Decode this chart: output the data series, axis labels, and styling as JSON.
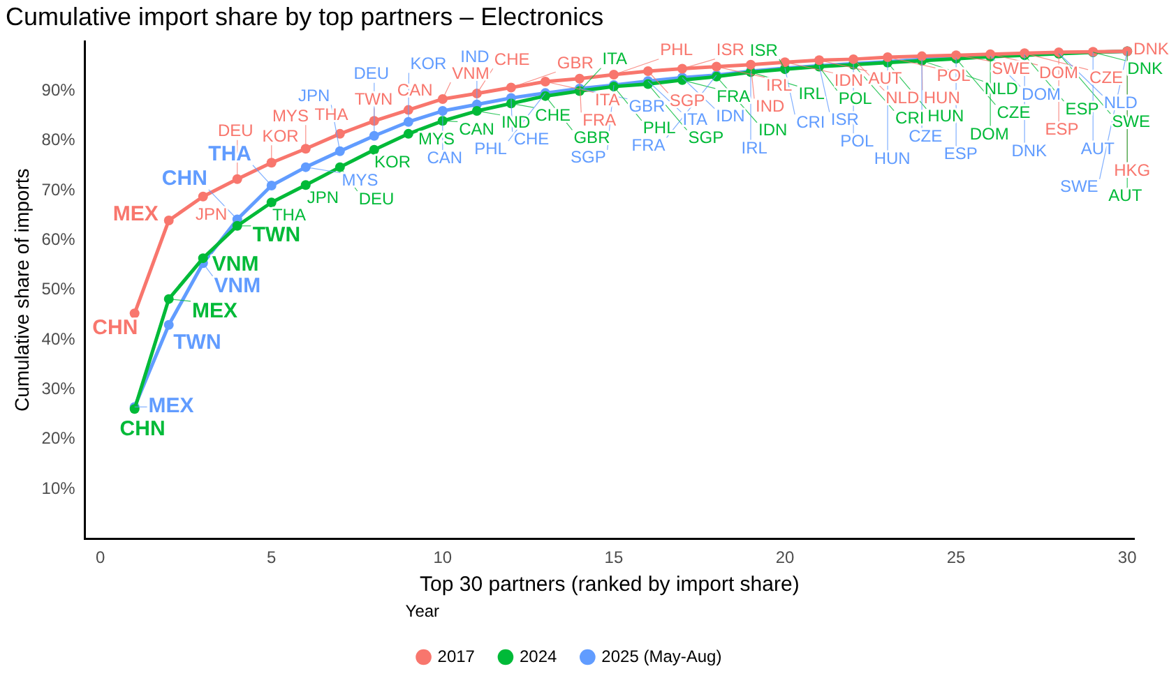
{
  "chart_data": {
    "type": "line",
    "title": "Cumulative import share by top partners – Electronics",
    "xlabel": "Top 30 partners (ranked by import share)",
    "ylabel": "Cumulative share of imports",
    "legend_title": "Year",
    "legend": "bottom",
    "grid": false,
    "marker": "circle",
    "line_style": "solid",
    "x": [
      1,
      2,
      3,
      4,
      5,
      6,
      7,
      8,
      9,
      10,
      11,
      12,
      13,
      14,
      15,
      16,
      17,
      18,
      19,
      20,
      21,
      22,
      23,
      24,
      25,
      26,
      27,
      28,
      29,
      30
    ],
    "xlim": [
      -0.45,
      30.2
    ],
    "xticks": [
      0,
      5,
      10,
      15,
      20,
      25,
      30
    ],
    "ylim": [
      0,
      100
    ],
    "yticks": [
      {
        "value": 10,
        "label": "10%"
      },
      {
        "value": 20,
        "label": "20%"
      },
      {
        "value": 30,
        "label": "30%"
      },
      {
        "value": 40,
        "label": "40%"
      },
      {
        "value": 50,
        "label": "50%"
      },
      {
        "value": 60,
        "label": "60%"
      },
      {
        "value": 70,
        "label": "70%"
      },
      {
        "value": 80,
        "label": "80%"
      },
      {
        "value": 90,
        "label": "90%"
      }
    ],
    "series": [
      {
        "name": "2017",
        "color": "#f8766d",
        "values": [
          45.3,
          64.0,
          68.8,
          72.3,
          75.6,
          78.4,
          81.4,
          84.0,
          86.2,
          88.4,
          89.5,
          90.7,
          91.9,
          92.5,
          93.3,
          94.0,
          94.5,
          94.9,
          95.3,
          95.8,
          96.2,
          96.4,
          96.8,
          97.0,
          97.2,
          97.4,
          97.6,
          97.8,
          97.9,
          98.0
        ],
        "value_labels": [
          "CHN",
          "MEX",
          "JPN",
          "DEU",
          "KOR",
          "MYS",
          "THA",
          "TWN",
          "CAN",
          "VNM",
          "CHE",
          "GBR",
          "ITA",
          "FRA",
          "PHL",
          "SGP",
          "ISR",
          "IRL",
          "IND",
          "IDN",
          "AUT",
          "NLD",
          "POL",
          "HUN",
          "SWE",
          "DOM",
          "CZE",
          "ESP",
          "DNK",
          "HKG"
        ]
      },
      {
        "name": "2024",
        "color": "#00ba38",
        "values": [
          26.1,
          48.2,
          56.4,
          62.9,
          67.6,
          71.1,
          74.7,
          78.2,
          81.4,
          84.0,
          86.0,
          87.5,
          89.0,
          90.0,
          90.9,
          91.4,
          92.2,
          92.9,
          93.8,
          94.4,
          94.9,
          95.3,
          95.7,
          96.1,
          96.5,
          96.9,
          97.2,
          97.5,
          97.8,
          98.0
        ],
        "value_labels": [
          "CHN",
          "MEX",
          "VNM",
          "TWN",
          "THA",
          "JPN",
          "DEU",
          "KOR",
          "MYS",
          "CAN",
          "IND",
          "CHE",
          "GBR",
          "ITA",
          "PHL",
          "SGP",
          "FRA",
          "IDN",
          "IRL",
          "ISR",
          "POL",
          "CRI",
          "HUN",
          "NLD",
          "CZE",
          "DOM",
          "ESP",
          "SWE",
          "DNK",
          "AUT"
        ]
      },
      {
        "name": "2025 (May-Aug)",
        "color": "#619cff",
        "values": [
          26.5,
          43.0,
          55.4,
          64.2,
          71.0,
          74.7,
          77.9,
          81.0,
          83.8,
          86.0,
          87.3,
          88.6,
          89.6,
          90.5,
          91.2,
          92.0,
          92.7,
          93.2,
          94.0,
          94.6,
          95.1,
          95.5,
          95.9,
          96.4,
          96.8,
          97.1,
          97.4,
          97.6,
          97.8,
          98.0
        ],
        "value_labels": [
          "MEX",
          "TWN",
          "VNM",
          "CHN",
          "THA",
          "MYS",
          "JPN",
          "DEU",
          "KOR",
          "CAN",
          "IND",
          "CHE",
          "PHL",
          "GBR",
          "SGP",
          "ITA",
          "IDN",
          "FRA",
          "IRL",
          "CRI",
          "ISR",
          "POL",
          "HUN",
          "CZE",
          "ESP",
          "DOM",
          "DNK",
          "NLD",
          "AUT",
          "SWE"
        ]
      }
    ]
  }
}
